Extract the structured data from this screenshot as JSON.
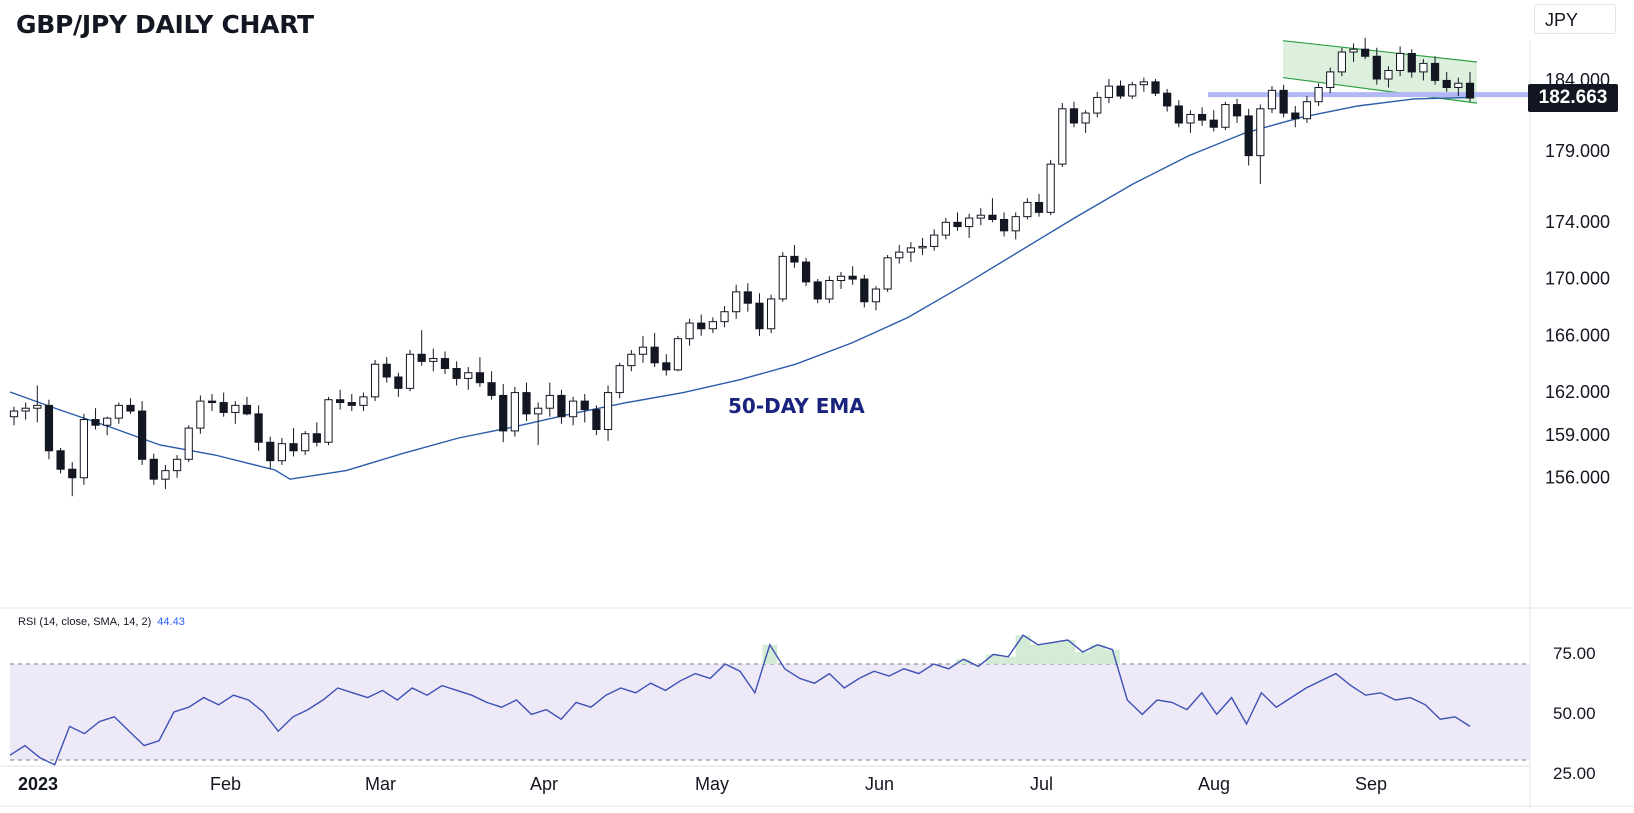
{
  "header": {
    "title": "GBP/JPY DAILY CHART",
    "currency": "JPY"
  },
  "annotations": {
    "ema_label": "50-DAY EMA",
    "last_price": "182.663"
  },
  "rsi_panel": {
    "label": "RSI (14, close, SMA, 14, 2)",
    "value": "44.43"
  },
  "colors": {
    "ema_line": "#2a5caa",
    "rsi_line": "#3f51b5",
    "rsi_band": "#ede9f7",
    "channel_fill": "#d5ecd4",
    "channel_line": "#2ea043",
    "support_line": "#b2b8f5",
    "candle": "#131722"
  },
  "chart_data": {
    "type": "candlestick",
    "price_axis": {
      "ticks": [
        "184.000",
        "179.000",
        "174.000",
        "170.000",
        "166.000",
        "162.000",
        "159.000",
        "156.000"
      ]
    },
    "rsi_axis": {
      "ticks": [
        "75.00",
        "50.00",
        "25.00"
      ],
      "bands": [
        30,
        70
      ]
    },
    "x_ticks": [
      "2023",
      "Feb",
      "Mar",
      "Apr",
      "May",
      "Jun",
      "Jul",
      "Aug",
      "Sep"
    ],
    "rsi": [
      32,
      36,
      31,
      28,
      44,
      41,
      46,
      48,
      42,
      36,
      38,
      50,
      52,
      56,
      53,
      57,
      55,
      50,
      42,
      48,
      51,
      55,
      60,
      58,
      56,
      59,
      55,
      60,
      57,
      61,
      59,
      57,
      54,
      52,
      55,
      49,
      51,
      47,
      54,
      52,
      57,
      60,
      58,
      62,
      59,
      63,
      66,
      64,
      70,
      67,
      58,
      78,
      68,
      64,
      62,
      66,
      60,
      64,
      67,
      65,
      68,
      66,
      70,
      68,
      72,
      69,
      74,
      73,
      82,
      78,
      79,
      80,
      75,
      78,
      76,
      55,
      49,
      55,
      54,
      51,
      58,
      49,
      56,
      45,
      58,
      52,
      56,
      60,
      63,
      66,
      61,
      57,
      58,
      55,
      56,
      53,
      47,
      48,
      44
    ],
    "ema_50": [
      155.8,
      156.4,
      157.6,
      158.7,
      159.5,
      160.4,
      161.2,
      161.9,
      162.8,
      163.9,
      165.4,
      167.2,
      169.5,
      171.9,
      174.3,
      176.6,
      178.6,
      180.2,
      181.3,
      182.1,
      182.6,
      182.7
    ],
    "channel": {
      "upper": [
        186.7,
        185.2
      ],
      "lower": [
        184.1,
        182.3
      ]
    },
    "support_level": 182.9,
    "candles": [
      [
        160.2,
        160.9,
        159.6,
        160.6
      ],
      [
        160.6,
        161.2,
        160.0,
        160.8
      ],
      [
        160.8,
        162.4,
        159.8,
        161.0
      ],
      [
        161.0,
        161.4,
        157.2,
        157.8
      ],
      [
        157.8,
        158.0,
        156.2,
        156.5
      ],
      [
        156.5,
        157.0,
        154.6,
        155.9
      ],
      [
        155.9,
        160.4,
        155.4,
        160.0
      ],
      [
        160.0,
        160.8,
        159.3,
        159.6
      ],
      [
        159.6,
        160.2,
        158.9,
        160.1
      ],
      [
        160.1,
        161.2,
        159.7,
        161.0
      ],
      [
        161.0,
        161.5,
        160.4,
        160.6
      ],
      [
        160.6,
        161.3,
        156.8,
        157.2
      ],
      [
        157.2,
        157.6,
        155.4,
        155.8
      ],
      [
        155.8,
        156.8,
        155.1,
        156.4
      ],
      [
        156.4,
        157.5,
        155.9,
        157.2
      ],
      [
        157.2,
        159.6,
        157.0,
        159.4
      ],
      [
        159.4,
        161.7,
        159.0,
        161.3
      ],
      [
        161.3,
        161.8,
        160.6,
        161.2
      ],
      [
        161.2,
        161.9,
        160.2,
        160.5
      ],
      [
        160.5,
        161.3,
        159.7,
        161.0
      ],
      [
        161.0,
        161.6,
        160.3,
        160.4
      ],
      [
        160.4,
        161.0,
        157.8,
        158.4
      ],
      [
        158.4,
        158.8,
        156.5,
        157.1
      ],
      [
        157.1,
        158.7,
        156.8,
        158.3
      ],
      [
        158.3,
        159.4,
        157.4,
        157.8
      ],
      [
        157.8,
        159.2,
        157.5,
        159.0
      ],
      [
        159.0,
        159.8,
        158.1,
        158.4
      ],
      [
        158.4,
        161.6,
        158.2,
        161.4
      ],
      [
        161.4,
        162.1,
        160.7,
        161.2
      ],
      [
        161.2,
        161.8,
        160.6,
        161.0
      ],
      [
        161.0,
        161.9,
        160.6,
        161.6
      ],
      [
        161.6,
        164.2,
        161.3,
        163.9
      ],
      [
        163.9,
        164.4,
        162.6,
        163.0
      ],
      [
        163.0,
        163.3,
        161.6,
        162.2
      ],
      [
        162.2,
        164.9,
        162.0,
        164.6
      ],
      [
        164.6,
        166.3,
        163.8,
        164.1
      ],
      [
        164.1,
        165.0,
        163.4,
        164.3
      ],
      [
        164.3,
        164.8,
        163.2,
        163.6
      ],
      [
        163.6,
        164.1,
        162.4,
        162.9
      ],
      [
        162.9,
        163.7,
        162.1,
        163.3
      ],
      [
        163.3,
        164.4,
        162.3,
        162.6
      ],
      [
        162.6,
        163.4,
        161.4,
        161.7
      ],
      [
        161.7,
        162.5,
        158.4,
        159.2
      ],
      [
        159.2,
        162.3,
        158.8,
        161.9
      ],
      [
        161.9,
        162.6,
        159.9,
        160.4
      ],
      [
        160.4,
        161.2,
        158.2,
        160.8
      ],
      [
        160.8,
        162.6,
        160.2,
        161.7
      ],
      [
        161.7,
        162.1,
        159.7,
        160.2
      ],
      [
        160.2,
        161.6,
        159.6,
        161.3
      ],
      [
        161.3,
        161.8,
        159.8,
        160.7
      ],
      [
        160.7,
        161.0,
        158.9,
        159.3
      ],
      [
        159.3,
        162.4,
        158.5,
        161.9
      ],
      [
        161.9,
        164.0,
        161.5,
        163.8
      ],
      [
        163.8,
        164.9,
        163.4,
        164.6
      ],
      [
        164.6,
        165.9,
        164.0,
        165.1
      ],
      [
        165.1,
        166.1,
        163.7,
        164.0
      ],
      [
        164.0,
        164.6,
        163.1,
        163.5
      ],
      [
        163.5,
        165.9,
        163.4,
        165.7
      ],
      [
        165.7,
        167.1,
        165.2,
        166.8
      ],
      [
        166.8,
        167.4,
        165.9,
        166.4
      ],
      [
        166.4,
        167.2,
        166.1,
        166.9
      ],
      [
        166.9,
        168.0,
        166.5,
        167.6
      ],
      [
        167.6,
        169.5,
        167.1,
        169.0
      ],
      [
        169.0,
        169.6,
        167.6,
        168.2
      ],
      [
        168.2,
        168.9,
        165.9,
        166.4
      ],
      [
        166.4,
        168.8,
        166.1,
        168.5
      ],
      [
        168.5,
        171.8,
        168.3,
        171.5
      ],
      [
        171.5,
        172.3,
        170.7,
        171.1
      ],
      [
        171.1,
        171.4,
        169.4,
        169.7
      ],
      [
        169.7,
        169.9,
        168.2,
        168.5
      ],
      [
        168.5,
        170.1,
        168.2,
        169.8
      ],
      [
        169.8,
        170.4,
        169.2,
        170.1
      ],
      [
        170.1,
        170.8,
        169.5,
        169.9
      ],
      [
        169.9,
        170.2,
        167.9,
        168.3
      ],
      [
        168.3,
        169.4,
        167.7,
        169.2
      ],
      [
        169.2,
        171.6,
        169.0,
        171.4
      ],
      [
        171.4,
        172.3,
        171.0,
        171.8
      ],
      [
        171.8,
        172.5,
        171.1,
        172.1
      ],
      [
        172.1,
        172.8,
        171.6,
        172.2
      ],
      [
        172.2,
        173.4,
        171.9,
        173.0
      ],
      [
        173.0,
        174.2,
        172.7,
        173.9
      ],
      [
        173.9,
        174.6,
        173.3,
        173.6
      ],
      [
        173.6,
        174.5,
        172.8,
        174.2
      ],
      [
        174.2,
        174.9,
        173.7,
        174.4
      ],
      [
        174.4,
        175.6,
        173.9,
        174.1
      ],
      [
        174.1,
        174.6,
        172.9,
        173.3
      ],
      [
        173.3,
        174.6,
        172.7,
        174.3
      ],
      [
        174.3,
        175.6,
        174.1,
        175.3
      ],
      [
        175.3,
        175.9,
        174.3,
        174.6
      ],
      [
        174.6,
        178.3,
        174.4,
        178.0
      ],
      [
        178.0,
        182.3,
        177.8,
        181.9
      ],
      [
        181.9,
        182.4,
        180.6,
        180.9
      ],
      [
        180.9,
        181.8,
        180.2,
        181.6
      ],
      [
        181.6,
        183.1,
        181.3,
        182.7
      ],
      [
        182.7,
        184.0,
        182.3,
        183.5
      ],
      [
        183.5,
        183.9,
        182.6,
        182.8
      ],
      [
        182.8,
        183.8,
        182.6,
        183.6
      ],
      [
        183.6,
        184.1,
        183.1,
        183.8
      ],
      [
        183.8,
        184.0,
        182.8,
        183.0
      ],
      [
        183.0,
        183.3,
        181.7,
        182.1
      ],
      [
        182.1,
        182.5,
        180.6,
        180.9
      ],
      [
        180.9,
        181.8,
        180.2,
        181.5
      ],
      [
        181.5,
        182.0,
        180.7,
        181.1
      ],
      [
        181.1,
        181.8,
        180.3,
        180.6
      ],
      [
        180.6,
        182.4,
        180.4,
        182.2
      ],
      [
        182.2,
        182.6,
        180.9,
        181.4
      ],
      [
        181.4,
        181.9,
        177.9,
        178.6
      ],
      [
        178.6,
        182.2,
        176.6,
        181.9
      ],
      [
        181.9,
        183.5,
        181.6,
        183.2
      ],
      [
        183.2,
        183.6,
        181.3,
        181.6
      ],
      [
        181.6,
        182.1,
        180.6,
        181.2
      ],
      [
        181.2,
        182.8,
        180.9,
        182.4
      ],
      [
        182.4,
        183.7,
        182.1,
        183.4
      ],
      [
        183.4,
        184.8,
        183.0,
        184.5
      ],
      [
        184.5,
        186.2,
        184.2,
        185.9
      ],
      [
        185.9,
        186.5,
        185.2,
        186.1
      ],
      [
        186.1,
        186.9,
        185.4,
        185.6
      ],
      [
        185.6,
        186.2,
        183.6,
        184.0
      ],
      [
        184.0,
        184.9,
        183.4,
        184.6
      ],
      [
        184.6,
        186.3,
        184.2,
        185.8
      ],
      [
        185.8,
        186.1,
        184.1,
        184.5
      ],
      [
        184.5,
        185.4,
        183.9,
        185.1
      ],
      [
        185.1,
        185.6,
        183.6,
        183.9
      ],
      [
        183.9,
        184.5,
        183.1,
        183.4
      ],
      [
        183.4,
        184.1,
        182.8,
        183.7
      ],
      [
        183.7,
        184.5,
        182.4,
        182.66
      ]
    ]
  }
}
